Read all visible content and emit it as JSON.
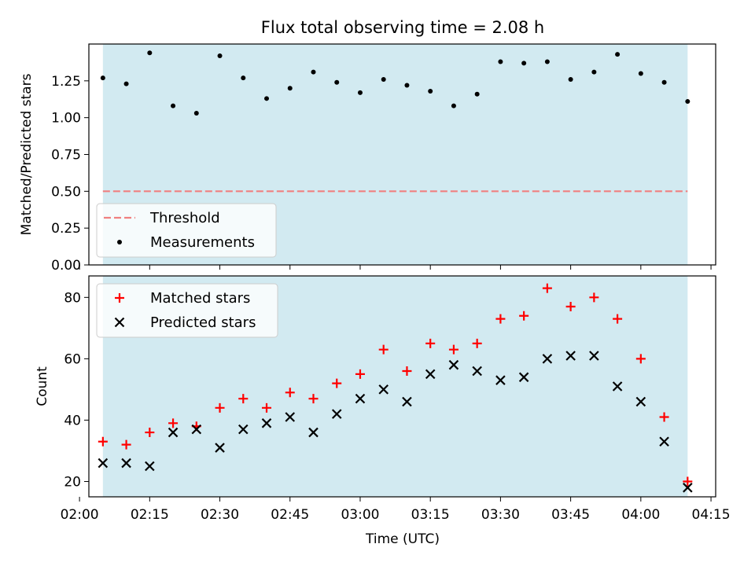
{
  "figure": {
    "title": "Flux total observing time = 2.08 h",
    "xlabel": "Time (UTC)"
  },
  "colors": {
    "observing_band": "#add8e6",
    "threshold": "#f08080",
    "measurements": "#000000",
    "matched": "#ff0000",
    "predicted": "#000000"
  },
  "chart_data": [
    {
      "type": "scatter",
      "panel": "top",
      "ylabel": "Matched/Predicted stars",
      "xlim": [
        "02:02",
        "04:16"
      ],
      "ylim": [
        0,
        1.5
      ],
      "yticks": [
        0.0,
        0.25,
        0.5,
        0.75,
        1.0,
        1.25
      ],
      "ytick_labels": [
        "0.00",
        "0.25",
        "0.50",
        "0.75",
        "1.00",
        "1.25"
      ],
      "observing_span": [
        "02:05",
        "04:10"
      ],
      "legend": {
        "placement": "lower-left",
        "entries": [
          "Threshold",
          "Measurements"
        ]
      },
      "threshold": {
        "name": "Threshold",
        "y": 0.5,
        "x_range": [
          "02:05",
          "04:10"
        ],
        "style": "dashed"
      },
      "series": [
        {
          "name": "Measurements",
          "marker": "dot",
          "x": [
            "02:05",
            "02:10",
            "02:15",
            "02:20",
            "02:25",
            "02:30",
            "02:35",
            "02:40",
            "02:45",
            "02:50",
            "02:55",
            "03:00",
            "03:05",
            "03:10",
            "03:15",
            "03:20",
            "03:25",
            "03:30",
            "03:35",
            "03:40",
            "03:45",
            "03:50",
            "03:55",
            "04:00",
            "04:05",
            "04:10"
          ],
          "y": [
            1.27,
            1.23,
            1.44,
            1.08,
            1.03,
            1.42,
            1.27,
            1.13,
            1.2,
            1.31,
            1.24,
            1.17,
            1.26,
            1.22,
            1.18,
            1.08,
            1.16,
            1.38,
            1.37,
            1.38,
            1.26,
            1.31,
            1.43,
            1.3,
            1.24,
            1.11
          ]
        }
      ]
    },
    {
      "type": "scatter",
      "panel": "bottom",
      "ylabel": "Count",
      "xlim": [
        "02:02",
        "04:16"
      ],
      "ylim": [
        15,
        87
      ],
      "yticks": [
        20,
        40,
        60,
        80
      ],
      "ytick_labels": [
        "20",
        "40",
        "60",
        "80"
      ],
      "xticks": [
        "02:00",
        "02:15",
        "02:30",
        "02:45",
        "03:00",
        "03:15",
        "03:30",
        "03:45",
        "04:00",
        "04:15"
      ],
      "observing_span": [
        "02:05",
        "04:10"
      ],
      "legend": {
        "placement": "upper-left",
        "entries": [
          "Matched stars",
          "Predicted stars"
        ]
      },
      "series": [
        {
          "name": "Matched stars",
          "marker": "plus",
          "x": [
            "02:05",
            "02:10",
            "02:15",
            "02:20",
            "02:25",
            "02:30",
            "02:35",
            "02:40",
            "02:45",
            "02:50",
            "02:55",
            "03:00",
            "03:05",
            "03:10",
            "03:15",
            "03:20",
            "03:25",
            "03:30",
            "03:35",
            "03:40",
            "03:45",
            "03:50",
            "03:55",
            "04:00",
            "04:05",
            "04:10"
          ],
          "y": [
            33,
            32,
            36,
            39,
            38,
            44,
            47,
            44,
            49,
            47,
            52,
            55,
            63,
            56,
            65,
            63,
            65,
            73,
            74,
            83,
            77,
            80,
            73,
            60,
            41,
            20
          ]
        },
        {
          "name": "Predicted stars",
          "marker": "x",
          "x": [
            "02:05",
            "02:10",
            "02:15",
            "02:20",
            "02:25",
            "02:30",
            "02:35",
            "02:40",
            "02:45",
            "02:50",
            "02:55",
            "03:00",
            "03:05",
            "03:10",
            "03:15",
            "03:20",
            "03:25",
            "03:30",
            "03:35",
            "03:40",
            "03:45",
            "03:50",
            "03:55",
            "04:00",
            "04:05",
            "04:10"
          ],
          "y": [
            26,
            26,
            25,
            36,
            37,
            31,
            37,
            39,
            41,
            36,
            42,
            47,
            50,
            46,
            55,
            58,
            56,
            53,
            54,
            60,
            61,
            61,
            51,
            46,
            33,
            18
          ]
        }
      ]
    }
  ]
}
